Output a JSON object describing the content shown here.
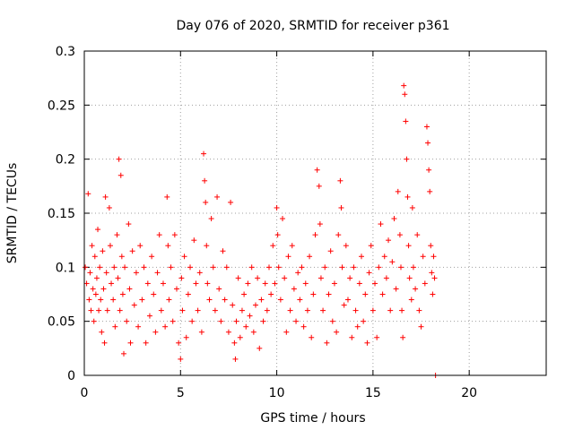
{
  "chart_data": {
    "type": "scatter",
    "title": "Day 076 of 2020, SRMTID for receiver p361",
    "xlabel": "GPS time / hours",
    "ylabel": "SRMTID / TECUs",
    "xlim": [
      0,
      24
    ],
    "ylim": [
      0,
      0.3
    ],
    "x_ticks": [
      0,
      5,
      10,
      15,
      20
    ],
    "x_tick_labels": [
      "0",
      "5",
      "10",
      "15",
      "20"
    ],
    "y_ticks": [
      0,
      0.05,
      0.1,
      0.15,
      0.2,
      0.25,
      0.3
    ],
    "y_tick_labels": [
      "0",
      "0.05",
      "0.1",
      "0.15",
      "0.2",
      "0.25",
      "0.3"
    ],
    "grid": true,
    "marker": "plus",
    "color": "#ff0000",
    "series": [
      {
        "name": "SRMTID",
        "description": "Dense scatter of SRMTID values between roughly 0.02 and 0.12 TECU from 0 to 18.3 h, with spikes up to 0.27 near 16.6 h",
        "points": [
          [
            0.05,
            0.1
          ],
          [
            0.12,
            0.085
          ],
          [
            0.2,
            0.168
          ],
          [
            0.25,
            0.07
          ],
          [
            0.3,
            0.095
          ],
          [
            0.35,
            0.06
          ],
          [
            0.4,
            0.12
          ],
          [
            0.45,
            0.08
          ],
          [
            0.5,
            0.05
          ],
          [
            0.55,
            0.11
          ],
          [
            0.6,
            0.075
          ],
          [
            0.65,
            0.09
          ],
          [
            0.7,
            0.135
          ],
          [
            0.75,
            0.06
          ],
          [
            0.8,
            0.1
          ],
          [
            0.85,
            0.07
          ],
          [
            0.9,
            0.04
          ],
          [
            0.95,
            0.115
          ],
          [
            1.0,
            0.08
          ],
          [
            1.05,
            0.03
          ],
          [
            1.1,
            0.165
          ],
          [
            1.15,
            0.095
          ],
          [
            1.2,
            0.06
          ],
          [
            1.3,
            0.155
          ],
          [
            1.35,
            0.12
          ],
          [
            1.4,
            0.085
          ],
          [
            1.5,
            0.07
          ],
          [
            1.55,
            0.1
          ],
          [
            1.6,
            0.045
          ],
          [
            1.7,
            0.13
          ],
          [
            1.75,
            0.09
          ],
          [
            1.8,
            0.2
          ],
          [
            1.85,
            0.06
          ],
          [
            1.9,
            0.185
          ],
          [
            1.95,
            0.11
          ],
          [
            2.0,
            0.075
          ],
          [
            2.05,
            0.02
          ],
          [
            2.1,
            0.1
          ],
          [
            2.2,
            0.05
          ],
          [
            2.3,
            0.14
          ],
          [
            2.35,
            0.08
          ],
          [
            2.4,
            0.03
          ],
          [
            2.5,
            0.115
          ],
          [
            2.6,
            0.065
          ],
          [
            2.7,
            0.095
          ],
          [
            2.8,
            0.045
          ],
          [
            2.9,
            0.12
          ],
          [
            3.0,
            0.07
          ],
          [
            3.1,
            0.1
          ],
          [
            3.2,
            0.03
          ],
          [
            3.3,
            0.085
          ],
          [
            3.4,
            0.055
          ],
          [
            3.5,
            0.11
          ],
          [
            3.6,
            0.075
          ],
          [
            3.7,
            0.04
          ],
          [
            3.8,
            0.095
          ],
          [
            3.9,
            0.13
          ],
          [
            4.0,
            0.06
          ],
          [
            4.1,
            0.085
          ],
          [
            4.2,
            0.045
          ],
          [
            4.3,
            0.165
          ],
          [
            4.35,
            0.12
          ],
          [
            4.4,
            0.07
          ],
          [
            4.5,
            0.1
          ],
          [
            4.6,
            0.05
          ],
          [
            4.7,
            0.13
          ],
          [
            4.8,
            0.08
          ],
          [
            4.9,
            0.03
          ],
          [
            5.0,
            0.015
          ],
          [
            5.05,
            0.09
          ],
          [
            5.1,
            0.06
          ],
          [
            5.2,
            0.11
          ],
          [
            5.3,
            0.035
          ],
          [
            5.4,
            0.075
          ],
          [
            5.5,
            0.1
          ],
          [
            5.6,
            0.05
          ],
          [
            5.7,
            0.125
          ],
          [
            5.8,
            0.085
          ],
          [
            5.9,
            0.06
          ],
          [
            6.0,
            0.095
          ],
          [
            6.1,
            0.04
          ],
          [
            6.2,
            0.205
          ],
          [
            6.25,
            0.18
          ],
          [
            6.3,
            0.16
          ],
          [
            6.35,
            0.12
          ],
          [
            6.4,
            0.085
          ],
          [
            6.5,
            0.07
          ],
          [
            6.6,
            0.145
          ],
          [
            6.7,
            0.1
          ],
          [
            6.8,
            0.06
          ],
          [
            6.9,
            0.165
          ],
          [
            7.0,
            0.08
          ],
          [
            7.1,
            0.05
          ],
          [
            7.2,
            0.115
          ],
          [
            7.3,
            0.07
          ],
          [
            7.4,
            0.1
          ],
          [
            7.5,
            0.04
          ],
          [
            7.6,
            0.16
          ],
          [
            7.7,
            0.065
          ],
          [
            7.8,
            0.03
          ],
          [
            7.85,
            0.015
          ],
          [
            7.9,
            0.05
          ],
          [
            8.0,
            0.09
          ],
          [
            8.1,
            0.035
          ],
          [
            8.2,
            0.06
          ],
          [
            8.3,
            0.075
          ],
          [
            8.4,
            0.045
          ],
          [
            8.5,
            0.085
          ],
          [
            8.6,
            0.055
          ],
          [
            8.7,
            0.1
          ],
          [
            8.8,
            0.04
          ],
          [
            8.9,
            0.065
          ],
          [
            9.0,
            0.09
          ],
          [
            9.1,
            0.025
          ],
          [
            9.2,
            0.07
          ],
          [
            9.3,
            0.05
          ],
          [
            9.4,
            0.085
          ],
          [
            9.5,
            0.06
          ],
          [
            9.6,
            0.1
          ],
          [
            9.7,
            0.075
          ],
          [
            9.8,
            0.12
          ],
          [
            9.9,
            0.085
          ],
          [
            10.0,
            0.155
          ],
          [
            10.05,
            0.13
          ],
          [
            10.1,
            0.1
          ],
          [
            10.2,
            0.07
          ],
          [
            10.3,
            0.145
          ],
          [
            10.4,
            0.09
          ],
          [
            10.5,
            0.04
          ],
          [
            10.6,
            0.11
          ],
          [
            10.7,
            0.06
          ],
          [
            10.8,
            0.12
          ],
          [
            10.9,
            0.08
          ],
          [
            11.0,
            0.05
          ],
          [
            11.1,
            0.095
          ],
          [
            11.2,
            0.07
          ],
          [
            11.3,
            0.1
          ],
          [
            11.4,
            0.045
          ],
          [
            11.5,
            0.085
          ],
          [
            11.6,
            0.06
          ],
          [
            11.7,
            0.11
          ],
          [
            11.8,
            0.035
          ],
          [
            11.9,
            0.075
          ],
          [
            12.0,
            0.13
          ],
          [
            12.1,
            0.19
          ],
          [
            12.2,
            0.175
          ],
          [
            12.25,
            0.14
          ],
          [
            12.3,
            0.09
          ],
          [
            12.4,
            0.06
          ],
          [
            12.5,
            0.1
          ],
          [
            12.6,
            0.03
          ],
          [
            12.7,
            0.075
          ],
          [
            12.8,
            0.115
          ],
          [
            12.9,
            0.05
          ],
          [
            13.0,
            0.085
          ],
          [
            13.1,
            0.04
          ],
          [
            13.2,
            0.13
          ],
          [
            13.3,
            0.18
          ],
          [
            13.35,
            0.155
          ],
          [
            13.4,
            0.1
          ],
          [
            13.5,
            0.065
          ],
          [
            13.6,
            0.12
          ],
          [
            13.7,
            0.07
          ],
          [
            13.8,
            0.09
          ],
          [
            13.9,
            0.035
          ],
          [
            14.0,
            0.1
          ],
          [
            14.1,
            0.06
          ],
          [
            14.2,
            0.045
          ],
          [
            14.3,
            0.085
          ],
          [
            14.4,
            0.11
          ],
          [
            14.5,
            0.05
          ],
          [
            14.6,
            0.075
          ],
          [
            14.7,
            0.03
          ],
          [
            14.8,
            0.095
          ],
          [
            14.9,
            0.12
          ],
          [
            15.0,
            0.06
          ],
          [
            15.1,
            0.085
          ],
          [
            15.2,
            0.035
          ],
          [
            15.3,
            0.1
          ],
          [
            15.4,
            0.14
          ],
          [
            15.5,
            0.075
          ],
          [
            15.6,
            0.11
          ],
          [
            15.7,
            0.09
          ],
          [
            15.8,
            0.125
          ],
          [
            15.9,
            0.06
          ],
          [
            16.0,
            0.105
          ],
          [
            16.1,
            0.145
          ],
          [
            16.2,
            0.08
          ],
          [
            16.3,
            0.17
          ],
          [
            16.4,
            0.13
          ],
          [
            16.45,
            0.1
          ],
          [
            16.5,
            0.06
          ],
          [
            16.55,
            0.035
          ],
          [
            16.6,
            0.268
          ],
          [
            16.65,
            0.26
          ],
          [
            16.7,
            0.235
          ],
          [
            16.75,
            0.2
          ],
          [
            16.8,
            0.165
          ],
          [
            16.85,
            0.12
          ],
          [
            16.9,
            0.09
          ],
          [
            17.0,
            0.07
          ],
          [
            17.05,
            0.155
          ],
          [
            17.1,
            0.1
          ],
          [
            17.2,
            0.08
          ],
          [
            17.3,
            0.13
          ],
          [
            17.4,
            0.06
          ],
          [
            17.5,
            0.045
          ],
          [
            17.6,
            0.11
          ],
          [
            17.7,
            0.085
          ],
          [
            17.8,
            0.23
          ],
          [
            17.85,
            0.215
          ],
          [
            17.9,
            0.19
          ],
          [
            17.95,
            0.17
          ],
          [
            18.0,
            0.12
          ],
          [
            18.05,
            0.095
          ],
          [
            18.1,
            0.075
          ],
          [
            18.15,
            0.11
          ],
          [
            18.2,
            0.09
          ],
          [
            18.25,
            0.0
          ]
        ]
      }
    ]
  }
}
